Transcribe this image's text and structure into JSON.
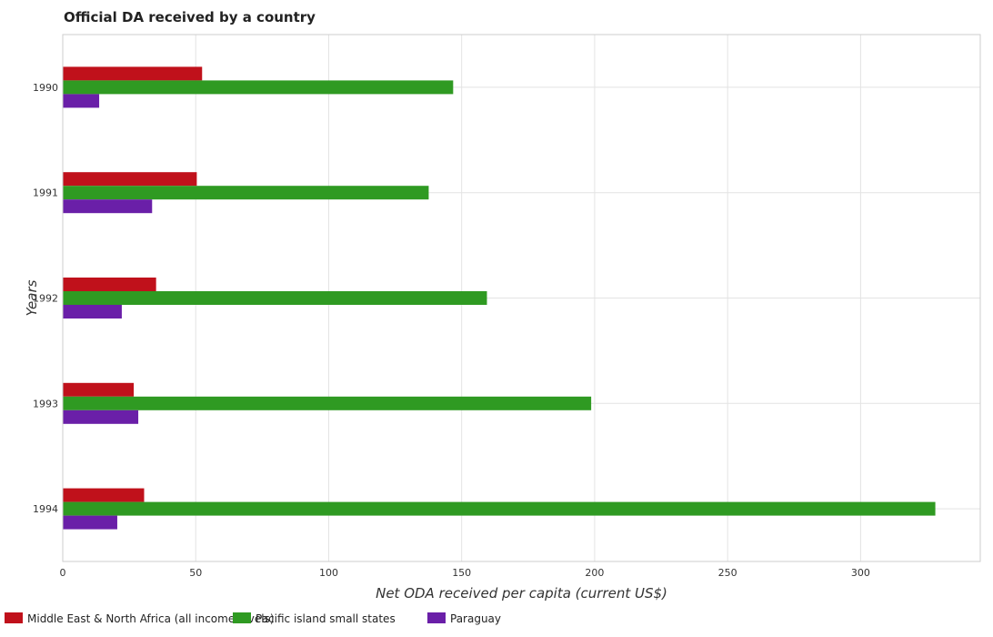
{
  "chart_data": {
    "type": "bar",
    "orientation": "horizontal",
    "title": "Official DA received by a country",
    "xlabel": "Net ODA received per capita (current US$)",
    "ylabel": "Years",
    "categories": [
      "1990",
      "1991",
      "1992",
      "1993",
      "1994"
    ],
    "series": [
      {
        "name": "Middle East & North Africa (all income levels)",
        "color": "#c0111b",
        "values": [
          52.4,
          50.4,
          35.1,
          26.7,
          30.6
        ]
      },
      {
        "name": "Pacific island small states",
        "color": "#2f9a22",
        "values": [
          146.8,
          137.6,
          159.5,
          198.7,
          328.1
        ]
      },
      {
        "name": "Paraguay",
        "color": "#6a1fa8",
        "values": [
          13.7,
          33.6,
          22.2,
          28.4,
          20.5
        ]
      }
    ],
    "xlim": [
      0,
      345
    ],
    "xticks": [
      0,
      50,
      100,
      150,
      200,
      250,
      300
    ],
    "grid": true,
    "legend_position": "bottom-left"
  }
}
